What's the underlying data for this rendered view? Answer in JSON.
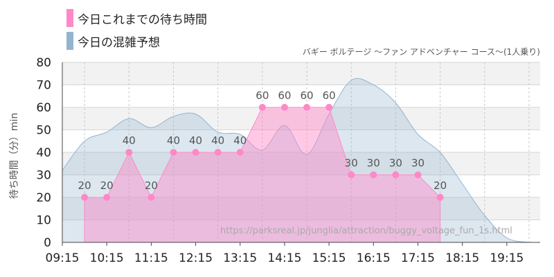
{
  "legend": [
    {
      "label": "今日これまでの待ち時間",
      "color": "#ff88c8"
    },
    {
      "label": "今日の混雑予想",
      "color": "#93b4d0"
    }
  ],
  "subtitle": "バギー ボルテージ 〜ファン アドベンチャー コース〜(1人乗り)",
  "watermark": "https://parksreal.jp/junglia/attraction/buggy_voltage_fun_1s.html",
  "chart_data": {
    "type": "area",
    "title": "",
    "ylabel": "待ち時間（分）min",
    "ylim": [
      0,
      80
    ],
    "yticks": [
      0,
      10,
      20,
      30,
      40,
      50,
      60,
      70,
      80
    ],
    "xlim": [
      "09:15",
      "20:00"
    ],
    "xticks": [
      "09:15",
      "10:15",
      "11:15",
      "12:15",
      "13:15",
      "14:15",
      "15:15",
      "16:15",
      "17:15",
      "18:15",
      "19:15"
    ],
    "grid": true,
    "series": [
      {
        "name": "今日これまでの待ち時間",
        "color": "#ff88c8",
        "x": [
          "09:45",
          "10:15",
          "10:45",
          "11:15",
          "11:45",
          "12:15",
          "12:45",
          "13:15",
          "13:45",
          "14:15",
          "14:45",
          "15:15",
          "15:45",
          "16:15",
          "16:45",
          "17:15",
          "17:45"
        ],
        "values": [
          20,
          20,
          40,
          20,
          40,
          40,
          40,
          40,
          60,
          60,
          60,
          60,
          30,
          30,
          30,
          30,
          20
        ],
        "labels": [
          "20",
          "20",
          "40",
          "20",
          "40",
          "40",
          "40",
          "40",
          "60",
          "60",
          "60",
          "60",
          "30",
          "30",
          "30",
          "30",
          "20"
        ]
      },
      {
        "name": "今日の混雑予想",
        "color": "#93b4d0",
        "x": [
          "09:15",
          "09:45",
          "10:15",
          "10:45",
          "11:15",
          "11:45",
          "12:15",
          "12:45",
          "13:15",
          "13:45",
          "14:15",
          "14:45",
          "15:15",
          "15:45",
          "16:15",
          "16:45",
          "17:15",
          "17:45",
          "18:15",
          "18:45",
          "19:15",
          "19:45"
        ],
        "values": [
          32,
          45,
          49,
          55,
          51,
          56,
          57,
          49,
          48,
          41,
          52,
          39,
          57,
          72,
          70,
          62,
          48,
          40,
          26,
          12,
          2,
          0
        ]
      }
    ]
  }
}
